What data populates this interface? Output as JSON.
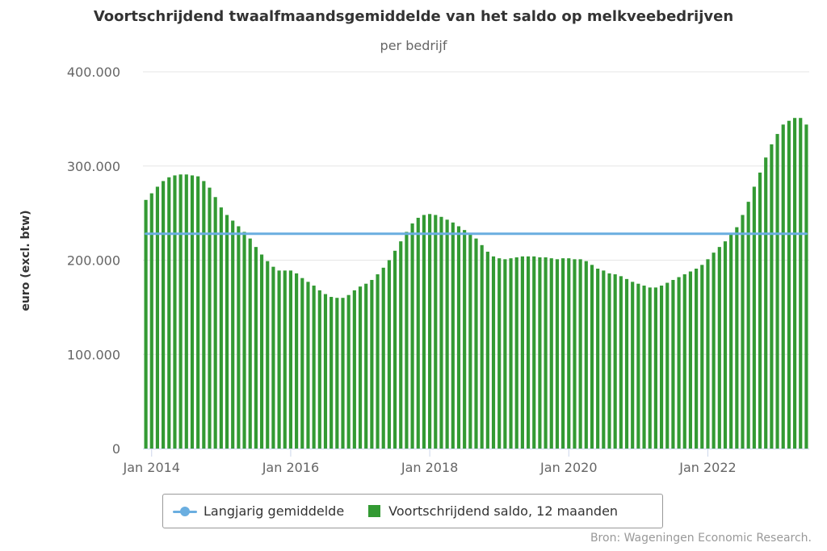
{
  "chart_data": {
    "type": "bar",
    "title": "Voortschrijdend twaalfmaandsgemiddelde van het saldo op melkveebedrijven",
    "subtitle": "per bedrijf",
    "ylabel": "euro (excl. btw)",
    "xlabel": "",
    "ylim": [
      0,
      400000
    ],
    "yticks": [
      0,
      100000,
      200000,
      300000,
      400000
    ],
    "ytick_labels": [
      "0",
      "100.000",
      "200.000",
      "300.000",
      "400.000"
    ],
    "xtick_labels": [
      "Jan 2014",
      "Jan 2016",
      "Jan 2018",
      "Jan 2020",
      "Jan 2022"
    ],
    "x_start": "2013-12",
    "x_end": "2023-06",
    "grid": true,
    "legend_position": "bottom",
    "series": [
      {
        "name": "Voortschrijdend saldo, 12 maanden",
        "type": "bar",
        "color": "#339a33",
        "values": [
          264000,
          271000,
          278000,
          284000,
          288000,
          290000,
          291000,
          291000,
          290000,
          289000,
          284000,
          277000,
          267000,
          256000,
          248000,
          242000,
          236000,
          230000,
          223000,
          214000,
          206000,
          199000,
          193000,
          189000,
          189000,
          189000,
          186000,
          181000,
          177000,
          173000,
          168000,
          164000,
          161000,
          160000,
          160000,
          163000,
          168000,
          172000,
          175000,
          179000,
          185000,
          192000,
          200000,
          210000,
          220000,
          230000,
          239000,
          245000,
          248000,
          249000,
          248000,
          246000,
          243000,
          240000,
          236000,
          232000,
          228000,
          223000,
          216000,
          209000,
          204000,
          202000,
          201000,
          202000,
          203000,
          204000,
          204000,
          204000,
          203000,
          203000,
          202000,
          201000,
          202000,
          202000,
          201000,
          201000,
          199000,
          195000,
          191000,
          189000,
          186000,
          185000,
          183000,
          180000,
          177000,
          175000,
          173000,
          171000,
          171000,
          173000,
          176000,
          179000,
          182000,
          185000,
          188000,
          191000,
          195000,
          201000,
          208000,
          214000,
          220000,
          227000,
          235000,
          248000,
          262000,
          278000,
          293000,
          309000,
          323000,
          334000,
          344000,
          348000,
          351000,
          351000,
          344000
        ]
      },
      {
        "name": "Langjarig gemiddelde",
        "type": "line",
        "color": "#6aaee0",
        "values": [
          228000
        ]
      }
    ]
  },
  "credits": "Bron: Wageningen Economic Research."
}
